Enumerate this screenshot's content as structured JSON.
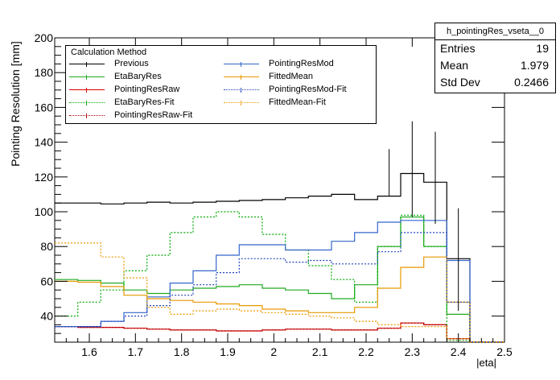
{
  "chart_data": {
    "type": "line",
    "title": "",
    "xlabel": "|eta|",
    "ylabel": "Pointing Resolution [mm]",
    "xlim": [
      1.525,
      2.5
    ],
    "ylim": [
      25,
      200
    ],
    "xticks": [
      1.6,
      1.7,
      1.8,
      1.9,
      2.0,
      2.1,
      2.2,
      2.3,
      2.4,
      2.5
    ],
    "xtick_labels": [
      "1.6",
      "1.7",
      "1.8",
      "1.9",
      "2",
      "2.1",
      "2.2",
      "2.3",
      "2.4",
      "2.5"
    ],
    "yticks": [
      40,
      60,
      80,
      100,
      120,
      140,
      160,
      180,
      200
    ],
    "ytick_labels": [
      "40",
      "60",
      "80",
      "100",
      "120",
      "140",
      "160",
      "180",
      "200"
    ],
    "bin_edges": [
      1.525,
      1.575,
      1.625,
      1.675,
      1.725,
      1.775,
      1.825,
      1.875,
      1.925,
      1.975,
      2.025,
      2.075,
      2.125,
      2.175,
      2.225,
      2.275,
      2.325,
      2.375,
      2.425,
      2.475,
      2.5
    ],
    "legend_title": "Calculation Method",
    "series": [
      {
        "name": "Previous",
        "color": "#000000",
        "style": "solid",
        "kind": "hist",
        "values": [
          105,
          105,
          104.5,
          105,
          105.5,
          105,
          105.5,
          106,
          106.5,
          107,
          108,
          109,
          110,
          107,
          109,
          122,
          117,
          73,
          25,
          25
        ]
      },
      {
        "name": "EtaBaryRes",
        "color": "#22aa22",
        "style": "solid",
        "kind": "hist",
        "values": [
          61,
          60.5,
          59,
          55,
          53,
          55,
          56,
          57,
          58,
          56,
          55,
          53,
          50,
          58,
          80,
          97,
          80,
          41,
          25,
          25
        ]
      },
      {
        "name": "PointingResRaw",
        "color": "#dd0000",
        "style": "solid",
        "kind": "hist",
        "values": [
          34,
          33.5,
          33.5,
          33,
          32.5,
          32,
          32,
          31.5,
          31.5,
          32,
          32.5,
          32.5,
          32,
          32,
          33,
          36,
          35,
          27,
          25,
          25
        ]
      },
      {
        "name": "EtaBaryRes-Fit",
        "color": "#00aa00",
        "style": "dotted",
        "kind": "hist",
        "values": [
          40,
          48,
          55,
          66,
          75,
          88,
          97,
          100,
          97,
          87,
          78,
          69,
          61,
          48,
          80,
          98,
          80,
          26,
          25,
          25
        ]
      },
      {
        "name": "PointingResRaw-Fit",
        "color": "#aa0000",
        "style": "dotted",
        "kind": "hist",
        "values": [
          34,
          33.5,
          33.5,
          33,
          32.5,
          32,
          32,
          31.5,
          31.5,
          32,
          32.5,
          32.5,
          32,
          32,
          33,
          36,
          35,
          27,
          25,
          25
        ]
      },
      {
        "name": "PointingResMod",
        "color": "#3366cc",
        "style": "solid",
        "kind": "hist",
        "values": [
          34,
          34,
          37,
          42,
          51,
          59,
          66,
          75,
          81,
          81,
          78,
          78,
          83,
          88,
          94,
          95,
          95,
          72,
          25,
          25
        ]
      },
      {
        "name": "FittedMean",
        "color": "#e69900",
        "style": "solid",
        "kind": "hist",
        "values": [
          60,
          59.5,
          57,
          52,
          50,
          49,
          48,
          47,
          46,
          44,
          43,
          42,
          42,
          45,
          56,
          68,
          74,
          48,
          25,
          25
        ]
      },
      {
        "name": "PointingResMod-Fit",
        "color": "#2244bb",
        "style": "dotted",
        "kind": "hist",
        "values": [
          34,
          34,
          37,
          40,
          46,
          52,
          58,
          65,
          73,
          73,
          71,
          72,
          70,
          70,
          77,
          88,
          88,
          48,
          25,
          25
        ]
      },
      {
        "name": "FittedMean-Fit",
        "color": "#ee9900",
        "style": "dotted",
        "kind": "hist",
        "values": [
          82,
          82,
          74,
          62,
          45,
          41,
          43,
          44,
          43,
          42,
          41,
          40,
          39,
          37,
          35,
          34,
          34,
          27,
          25,
          25
        ]
      }
    ],
    "error_bars": {
      "series": "Previous",
      "x": [
        2.25,
        2.3,
        2.35,
        2.4
      ],
      "low": [
        109,
        97,
        93,
        43
      ],
      "high": [
        136,
        152,
        146,
        102
      ]
    },
    "stats": {
      "title": "h_pointingRes_vseta__0",
      "entries_label": "Entries",
      "entries": "19",
      "mean_label": "Mean",
      "mean": "1.979",
      "std_label": "Std Dev",
      "std": "0.2466"
    }
  }
}
